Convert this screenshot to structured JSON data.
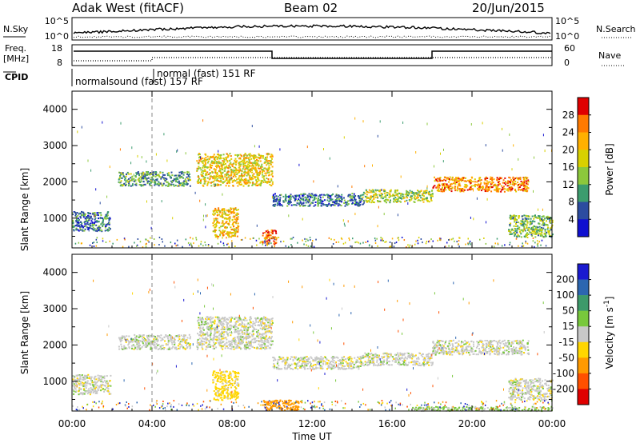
{
  "header": {
    "station": "Adak West (fitACF)",
    "beam": "Beam 02",
    "date": "20/Jun/2015"
  },
  "top_panel": {
    "nsky_label": "N.Sky",
    "nsky_ticks": [
      "10^5",
      "10^0"
    ],
    "nsearch_label": "N.Search",
    "freq_label_line1": "Freq.",
    "freq_label_line2": "[MHz]",
    "freq_ticks": [
      "18",
      "8"
    ],
    "nave_ticks": [
      "60",
      "0"
    ],
    "nave_label": "Nave",
    "cpid_label": "CPID",
    "cpid_program1": "normalsound (fast) 157 RF",
    "cpid_program2": "normal (fast) 151 RF"
  },
  "colorbars": {
    "power": {
      "label": "Power [dB]",
      "ticks": [
        "28",
        "24",
        "20",
        "16",
        "12",
        "8",
        "4"
      ],
      "colors": [
        "#e00000",
        "#ff7a00",
        "#ffb000",
        "#d8d000",
        "#8cc83c",
        "#3c9c6e",
        "#2c4ca0",
        "#1010d0"
      ]
    },
    "velocity": {
      "label_main": "Velocity [m s",
      "label_sup": "-1",
      "label_end": "]",
      "ticks": [
        "200",
        "100",
        "50",
        "15",
        "-15",
        "-50",
        "-100",
        "-200"
      ],
      "colors": [
        "#1a1ad0",
        "#2c66b0",
        "#3d9a6a",
        "#78c83c",
        "#c8c8c8",
        "#ffd600",
        "#ff9a00",
        "#ff5000",
        "#e00000"
      ]
    }
  },
  "axes": {
    "ylabel": "Slant Range [km]",
    "yticks": [
      "4000",
      "3000",
      "2000",
      "1000"
    ],
    "xlabel": "Time UT",
    "xticks": [
      "00:00",
      "04:00",
      "08:00",
      "12:00",
      "16:00",
      "20:00",
      "00:00"
    ]
  },
  "chart_data": [
    {
      "type": "heatmap",
      "title": "Power",
      "xlabel": "",
      "ylabel": "Slant Range [km]",
      "xlim_hours": [
        0,
        24
      ],
      "ylim_km": [
        180,
        4500
      ],
      "colorbar_range_db": [
        4,
        28
      ],
      "regions": [
        {
          "t": [
            0.0,
            1.9
          ],
          "r": [
            650,
            1200
          ],
          "value": 10
        },
        {
          "t": [
            2.3,
            5.9
          ],
          "r": [
            1900,
            2300
          ],
          "value": 12
        },
        {
          "t": [
            6.2,
            10.0
          ],
          "r": [
            1900,
            2800
          ],
          "value": 18
        },
        {
          "t": [
            7.0,
            8.3
          ],
          "r": [
            500,
            1300
          ],
          "value": 20
        },
        {
          "t": [
            9.5,
            10.2
          ],
          "r": [
            300,
            700
          ],
          "value": 24
        },
        {
          "t": [
            10.0,
            14.5
          ],
          "r": [
            1350,
            1700
          ],
          "value": 10
        },
        {
          "t": [
            14.5,
            18.0
          ],
          "r": [
            1450,
            1800
          ],
          "value": 16
        },
        {
          "t": [
            18.0,
            22.8
          ],
          "r": [
            1750,
            2150
          ],
          "value": 22
        },
        {
          "t": [
            21.8,
            24.0
          ],
          "r": [
            500,
            1100
          ],
          "value": 14
        }
      ]
    },
    {
      "type": "heatmap",
      "title": "Velocity",
      "xlabel": "Time UT",
      "ylabel": "Slant Range [km]",
      "xlim_hours": [
        0,
        24
      ],
      "ylim_km": [
        180,
        4500
      ],
      "colorbar_range_ms": [
        -200,
        200
      ],
      "regions": [
        {
          "t": [
            0.0,
            1.9
          ],
          "r": [
            650,
            1200
          ],
          "value": 0
        },
        {
          "t": [
            2.3,
            5.9
          ],
          "r": [
            1900,
            2300
          ],
          "value": 0
        },
        {
          "t": [
            6.2,
            10.0
          ],
          "r": [
            1900,
            2800
          ],
          "value": 0
        },
        {
          "t": [
            7.0,
            8.3
          ],
          "r": [
            500,
            1300
          ],
          "value": -30
        },
        {
          "t": [
            9.5,
            11.5
          ],
          "r": [
            220,
            500
          ],
          "value": -70
        },
        {
          "t": [
            10.0,
            14.5
          ],
          "r": [
            1350,
            1700
          ],
          "value": 0
        },
        {
          "t": [
            14.5,
            18.0
          ],
          "r": [
            1450,
            1800
          ],
          "value": 0
        },
        {
          "t": [
            18.0,
            22.8
          ],
          "r": [
            1750,
            2150
          ],
          "value": 0
        },
        {
          "t": [
            21.8,
            24.0
          ],
          "r": [
            500,
            1100
          ],
          "value": 0
        },
        {
          "t": [
            17.0,
            24.0
          ],
          "r": [
            200,
            320
          ],
          "value": 20
        }
      ]
    }
  ]
}
